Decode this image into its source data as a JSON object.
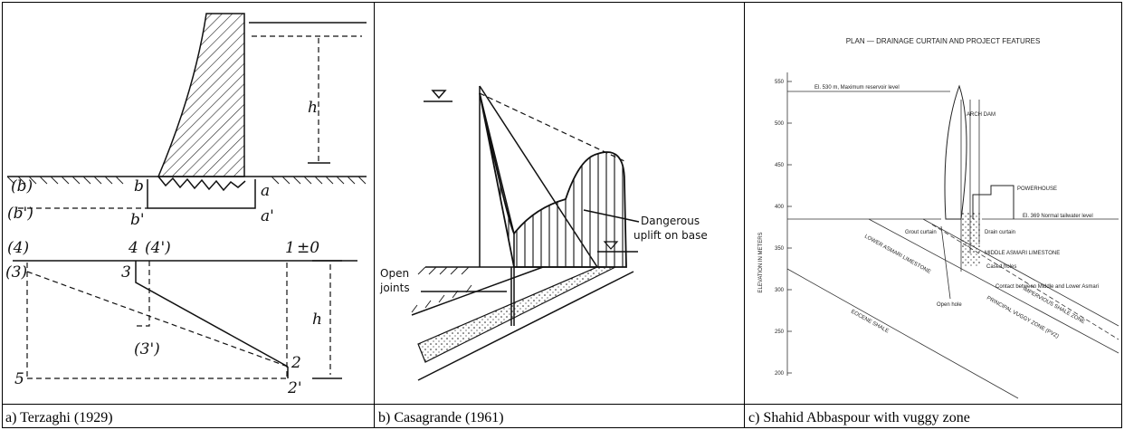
{
  "figure": {
    "panels": [
      {
        "caption": "a) Terzaghi (1929)",
        "labels": [
          "h",
          "(b)",
          "b",
          "a",
          "(b')",
          "b'",
          "a'",
          "(4)",
          "4",
          "(4')",
          "1",
          "±0",
          "(3)",
          "3",
          "(3')",
          "2",
          "5",
          "2'",
          "h"
        ]
      },
      {
        "caption": "b) Casagrande (1961)",
        "labels": [
          "Dangerous",
          "uplift on base",
          "Open",
          "joints"
        ]
      },
      {
        "caption": "c) Shahid Abbaspour with vuggy zone",
        "title": "PLAN — DRAINAGE CURTAIN AND PROJECT FEATURES",
        "axis_label": "ELEVATION IN METERS",
        "ticks": [
          550,
          500,
          450,
          400,
          350,
          300,
          250,
          200
        ],
        "labels": [
          "El. 530 m, Maximum reservoir level",
          "ARCH DAM",
          "POWERHOUSE",
          "El. 369 Normal tailwater level",
          "Grout curtain",
          "Drain curtain",
          "MIDDLE ASMARI LIMESTONE",
          "Cased holes",
          "LOWER ASMARI LIMESTONE",
          "Contact between Middle and Lower Asmari",
          "PRINCIPAL VUGGY ZONE (PVZ)",
          "IMPERVIOUS SHALE ZONE",
          "Open hole",
          "EOCENE SHALE"
        ]
      }
    ]
  }
}
